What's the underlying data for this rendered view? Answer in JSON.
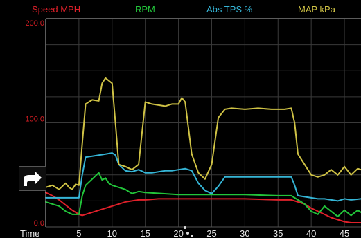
{
  "legend": {
    "speed": "Speed MPH",
    "rpm": "RPM",
    "tps": "Abs TPS %",
    "map": "MAP kPa"
  },
  "colors": {
    "speed": "#e0202a",
    "rpm": "#22c43a",
    "tps": "#35b5d6",
    "map": "#cfc245",
    "axis_label": "#d81e24",
    "tick_label": "#e8e8e8",
    "grid": "#3a3a3a",
    "frame": "#b8b8b8"
  },
  "share_icon": "share-arrow-icon",
  "chart_data": {
    "type": "line",
    "xlabel": "Time",
    "xlim": [
      0,
      47.5
    ],
    "ylim": [
      0,
      200
    ],
    "x_ticks": [
      5,
      10,
      15,
      20,
      25,
      30,
      35,
      40,
      45
    ],
    "y_ticks": [
      0,
      100,
      200
    ],
    "y_tick_labels": [
      "0.0",
      "100.0",
      "200.0"
    ],
    "grid": true,
    "series": [
      {
        "name": "Speed MPH",
        "key": "speed",
        "x": [
          0,
          1,
          2,
          3,
          4,
          5,
          5.5,
          6,
          7,
          8,
          9,
          10,
          11,
          12,
          13,
          14,
          15,
          17,
          20,
          25,
          30,
          35,
          37,
          38,
          39,
          40,
          41,
          42,
          43,
          44,
          45,
          46,
          47.5
        ],
        "y": [
          33,
          30,
          26,
          21,
          16,
          12,
          11,
          12,
          14,
          16,
          18,
          20,
          22,
          24,
          25,
          26,
          26,
          27,
          27,
          27,
          27,
          26,
          26,
          24,
          22,
          18,
          15,
          12,
          9,
          7,
          5,
          4,
          4
        ]
      },
      {
        "name": "RPM",
        "key": "rpm",
        "x": [
          0,
          1,
          2,
          3,
          4,
          5,
          5.5,
          6,
          7,
          8,
          8.5,
          9,
          9.5,
          10,
          11,
          12,
          13,
          14,
          15,
          20,
          25,
          30,
          35,
          37,
          38,
          39,
          40,
          41,
          42,
          43,
          44,
          45,
          46,
          47,
          47.5
        ],
        "y": [
          24,
          22,
          20,
          15,
          12,
          12,
          30,
          40,
          46,
          52,
          45,
          47,
          42,
          40,
          38,
          36,
          32,
          34,
          33,
          31,
          31,
          31,
          30,
          30,
          26,
          22,
          15,
          12,
          20,
          15,
          10,
          16,
          11,
          16,
          14
        ]
      },
      {
        "name": "Abs TPS %",
        "key": "tps",
        "x": [
          0,
          1,
          2,
          3,
          4,
          5,
          5.5,
          6,
          7,
          8,
          9,
          10,
          10.5,
          11,
          12,
          13,
          14,
          15,
          16,
          17,
          18,
          19,
          20,
          21,
          22,
          23,
          24,
          25,
          26,
          27,
          30,
          33,
          35,
          37,
          37.5,
          38,
          39,
          40,
          41,
          42,
          43,
          44,
          45,
          46,
          47.5
        ],
        "y": [
          28,
          28,
          28,
          28,
          28,
          28,
          50,
          67,
          68,
          69,
          70,
          71,
          69,
          60,
          54,
          53,
          55,
          52,
          52,
          53,
          54,
          54,
          55,
          56,
          54,
          42,
          35,
          32,
          39,
          48,
          48,
          48,
          48,
          48,
          40,
          30,
          29,
          28,
          27,
          27,
          26,
          25,
          27,
          26,
          27
        ]
      },
      {
        "name": "MAP kPa",
        "key": "map",
        "x": [
          0,
          1,
          2,
          3,
          3.5,
          4,
          4.5,
          5,
          5.5,
          6,
          7,
          8,
          8.5,
          9,
          10,
          10.5,
          11,
          12,
          13,
          14,
          15,
          16,
          17,
          18,
          19,
          20,
          20.5,
          21,
          22,
          23,
          24,
          25,
          26,
          27,
          28,
          30,
          32,
          34,
          35,
          36,
          37,
          37.5,
          38,
          39,
          40,
          41,
          42,
          43,
          44,
          45,
          46,
          47,
          47.5
        ],
        "y": [
          38,
          40,
          36,
          42,
          38,
          36,
          41,
          40,
          80,
          118,
          122,
          121,
          138,
          143,
          138,
          100,
          60,
          58,
          55,
          60,
          120,
          118,
          117,
          116,
          118,
          118,
          124,
          120,
          70,
          52,
          46,
          60,
          105,
          113,
          114,
          113,
          114,
          113,
          113,
          113,
          114,
          100,
          70,
          60,
          50,
          48,
          50,
          55,
          50,
          58,
          50,
          56,
          55
        ]
      }
    ]
  }
}
